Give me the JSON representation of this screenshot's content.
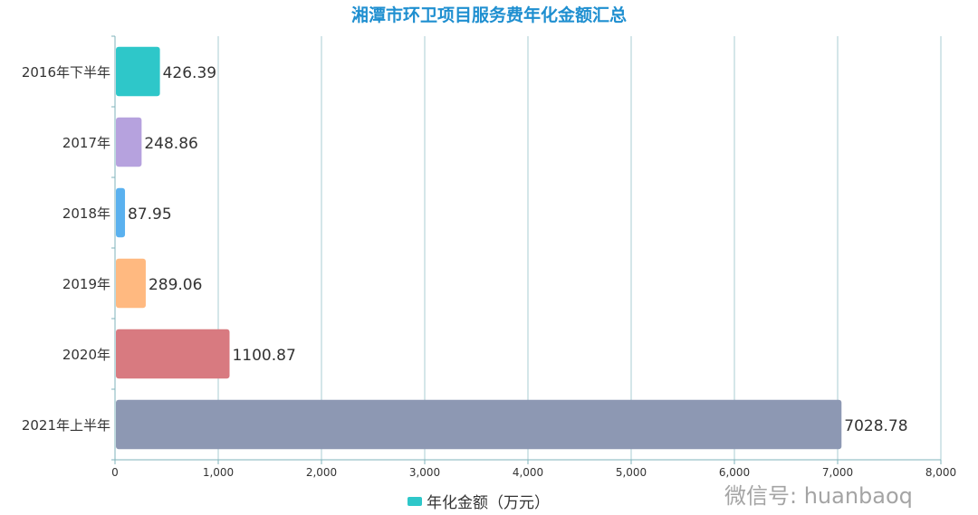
{
  "chart_data": {
    "type": "bar",
    "orientation": "horizontal",
    "title": "湘潭市环卫项目服务费年化金额汇总",
    "categories": [
      "2016年下半年",
      "2017年",
      "2018年",
      "2019年",
      "2020年",
      "2021年上半年"
    ],
    "series": [
      {
        "name": "年化金额（万元）",
        "values": [
          426.39,
          248.86,
          87.95,
          289.06,
          1100.87,
          7028.78
        ]
      }
    ],
    "bar_colors": [
      "#2ec7c9",
      "#b6a2de",
      "#5ab1ef",
      "#ffb980",
      "#d87a80",
      "#8d98b3"
    ],
    "xlim": [
      0,
      8000
    ],
    "xticks": [
      "0",
      "1,000",
      "2,000",
      "3,000",
      "4,000",
      "5,000",
      "6,000",
      "7,000",
      "8,000"
    ],
    "grid": true,
    "legend_position": "bottom"
  },
  "watermark": "微信号: huanbaoq"
}
